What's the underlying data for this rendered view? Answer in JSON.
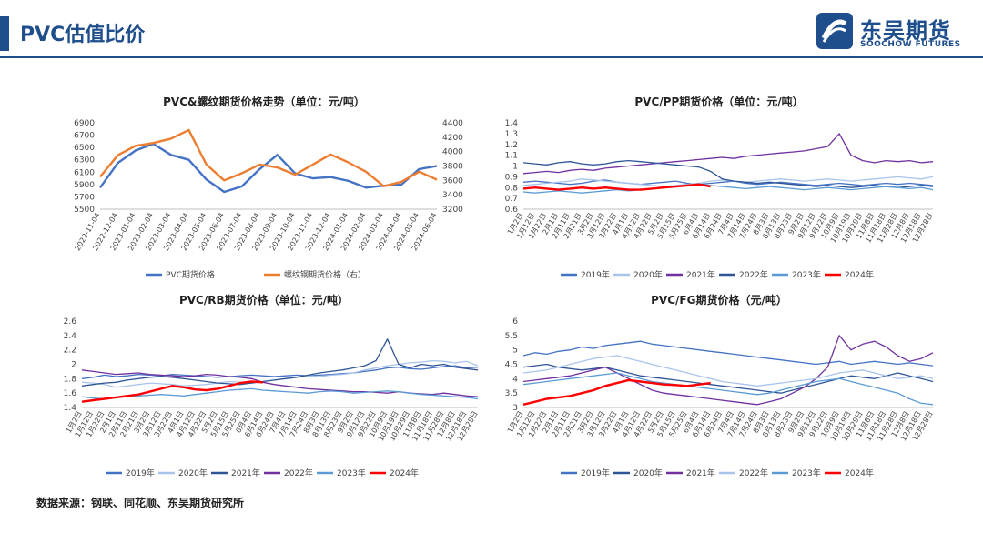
{
  "header": {
    "title": "PVC估值比价"
  },
  "logo": {
    "cn": "东吴期货",
    "en": "SOOCHOW FUTURES"
  },
  "footer": {
    "source": "数据来源：钢联、同花顺、东吴期货研究所"
  },
  "colors": {
    "brand": "#1f4e8c"
  },
  "chart_data": [
    {
      "id": "c1",
      "type": "line",
      "title": "PVC&螺纹期货价格走势（单位：元/吨）",
      "x": [
        "2022-11-04",
        "2022-12-04",
        "2023-01-04",
        "2023-02-04",
        "2023-03-04",
        "2023-04-04",
        "2023-05-04",
        "2023-06-04",
        "2023-07-04",
        "2023-08-04",
        "2023-09-04",
        "2023-10-04",
        "2023-11-04",
        "2023-12-04",
        "2024-01-04",
        "2024-02-04",
        "2024-03-04",
        "2024-04-04",
        "2024-05-04",
        "2024-06-04"
      ],
      "ylim": [
        5500,
        6900
      ],
      "yticks": [
        5500,
        5700,
        5900,
        6100,
        6300,
        6500,
        6700,
        6900
      ],
      "y2lim": [
        3200,
        4400
      ],
      "y2ticks": [
        3200,
        3400,
        3600,
        3800,
        4000,
        4200,
        4400
      ],
      "series": [
        {
          "name": "PVC期货价格",
          "axis": "left",
          "color": "#4472c4",
          "values": [
            5850,
            6250,
            6450,
            6560,
            6380,
            6300,
            5980,
            5780,
            5870,
            6150,
            6380,
            6080,
            6000,
            6020,
            5960,
            5850,
            5880,
            5900,
            6150,
            6200
          ]
        },
        {
          "name": "螺纹钢期货价格（右）",
          "axis": "right",
          "color": "#ed7d31",
          "values": [
            3650,
            3950,
            4080,
            4120,
            4180,
            4300,
            3820,
            3600,
            3700,
            3820,
            3780,
            3680,
            3820,
            3960,
            3850,
            3720,
            3520,
            3580,
            3720,
            3610
          ]
        }
      ]
    },
    {
      "id": "c2",
      "type": "line",
      "title": "PVC/PP期货价格（单位：元/吨）",
      "x": [
        "1月2日",
        "1月12日",
        "1月22日",
        "2月1日",
        "2月11日",
        "2月21日",
        "3月2日",
        "3月12日",
        "3月22日",
        "4月1日",
        "4月12日",
        "4月22日",
        "5月2日",
        "5月15日",
        "5月25日",
        "6月4日",
        "6月14日",
        "6月24日",
        "7月4日",
        "7月14日",
        "7月24日",
        "8月3日",
        "8月13日",
        "8月23日",
        "9月2日",
        "9月12日",
        "9月22日",
        "10月9日",
        "10月19日",
        "10月29日",
        "11月8日",
        "11月18日",
        "11月28日",
        "12月8日",
        "12月18日",
        "12月28日"
      ],
      "ylim": [
        0.6,
        1.4
      ],
      "yticks": [
        0.6,
        0.7,
        0.8,
        0.9,
        1,
        1.1,
        1.2,
        1.3,
        1.4
      ],
      "series": [
        {
          "name": "2019年",
          "color": "#4472c4",
          "values": [
            0.85,
            0.86,
            0.85,
            0.84,
            0.83,
            0.84,
            0.86,
            0.87,
            0.85,
            0.84,
            0.83,
            0.84,
            0.85,
            0.86,
            0.84,
            0.83,
            0.84,
            0.85,
            0.86,
            0.84,
            0.83,
            0.84,
            0.85,
            0.84,
            0.83,
            0.82,
            0.83,
            0.84,
            0.83,
            0.82,
            0.83,
            0.84,
            0.83,
            0.84,
            0.83,
            0.82
          ]
        },
        {
          "name": "2020年",
          "color": "#a9c4eb",
          "values": [
            0.82,
            0.83,
            0.84,
            0.85,
            0.86,
            0.88,
            0.87,
            0.86,
            0.85,
            0.84,
            0.83,
            0.82,
            0.81,
            0.82,
            0.83,
            0.84,
            0.86,
            0.87,
            0.86,
            0.85,
            0.86,
            0.87,
            0.88,
            0.87,
            0.86,
            0.87,
            0.88,
            0.87,
            0.86,
            0.87,
            0.88,
            0.89,
            0.9,
            0.89,
            0.88,
            0.9
          ]
        },
        {
          "name": "2021年",
          "color": "#7030a0",
          "values": [
            0.93,
            0.94,
            0.95,
            0.94,
            0.96,
            0.97,
            0.96,
            0.98,
            0.99,
            1.0,
            1.01,
            1.02,
            1.03,
            1.04,
            1.05,
            1.06,
            1.07,
            1.08,
            1.07,
            1.09,
            1.1,
            1.11,
            1.12,
            1.13,
            1.14,
            1.16,
            1.18,
            1.3,
            1.1,
            1.05,
            1.03,
            1.05,
            1.04,
            1.05,
            1.03,
            1.04
          ]
        },
        {
          "name": "2022年",
          "color": "#2f5597",
          "values": [
            1.03,
            1.02,
            1.01,
            1.03,
            1.04,
            1.02,
            1.01,
            1.02,
            1.04,
            1.05,
            1.04,
            1.03,
            1.02,
            1.01,
            1.0,
            0.99,
            0.95,
            0.88,
            0.86,
            0.85,
            0.84,
            0.85,
            0.84,
            0.83,
            0.82,
            0.81,
            0.82,
            0.81,
            0.8,
            0.81,
            0.82,
            0.81,
            0.8,
            0.81,
            0.82,
            0.81
          ]
        },
        {
          "name": "2023年",
          "color": "#5b9bd5",
          "values": [
            0.76,
            0.75,
            0.76,
            0.77,
            0.76,
            0.75,
            0.76,
            0.77,
            0.78,
            0.77,
            0.78,
            0.79,
            0.8,
            0.81,
            0.82,
            0.83,
            0.82,
            0.81,
            0.8,
            0.79,
            0.8,
            0.81,
            0.8,
            0.79,
            0.78,
            0.79,
            0.8,
            0.79,
            0.78,
            0.79,
            0.8,
            0.81,
            0.8,
            0.79,
            0.8,
            0.78
          ]
        },
        {
          "name": "2024年",
          "color": "#ff0000",
          "values": [
            0.79,
            0.8,
            0.79,
            0.78,
            0.79,
            0.8,
            0.79,
            0.8,
            0.79,
            0.78,
            0.78,
            0.79,
            0.8,
            0.81,
            0.82,
            0.83,
            0.81,
            null,
            null,
            null,
            null,
            null,
            null,
            null,
            null,
            null,
            null,
            null,
            null,
            null,
            null,
            null,
            null,
            null,
            null,
            null
          ]
        }
      ]
    },
    {
      "id": "c3",
      "type": "line",
      "title": "PVC/RB期货价格（单位：元/吨）",
      "x": [
        "1月2日",
        "1月12日",
        "1月22日",
        "2月1日",
        "2月11日",
        "2月21日",
        "3月2日",
        "3月12日",
        "3月22日",
        "4月1日",
        "4月12日",
        "4月22日",
        "5月2日",
        "5月15日",
        "5月25日",
        "6月4日",
        "6月14日",
        "6月24日",
        "7月4日",
        "7月14日",
        "7月24日",
        "8月3日",
        "8月13日",
        "8月23日",
        "9月2日",
        "9月12日",
        "9月22日",
        "10月9日",
        "10月19日",
        "10月29日",
        "11月8日",
        "11月18日",
        "11月28日",
        "12月8日",
        "12月18日",
        "12月28日"
      ],
      "ylim": [
        1.4,
        2.6
      ],
      "yticks": [
        1.4,
        1.6,
        1.8,
        2,
        2.2,
        2.4,
        2.6
      ],
      "series": [
        {
          "name": "2019年",
          "color": "#4472c4",
          "values": [
            1.8,
            1.82,
            1.85,
            1.83,
            1.84,
            1.86,
            1.85,
            1.84,
            1.86,
            1.85,
            1.84,
            1.83,
            1.82,
            1.83,
            1.84,
            1.85,
            1.84,
            1.83,
            1.84,
            1.85,
            1.84,
            1.85,
            1.86,
            1.87,
            1.88,
            1.9,
            1.92,
            1.95,
            1.96,
            1.94,
            1.93,
            1.95,
            1.97,
            1.98,
            1.95,
            1.96
          ]
        },
        {
          "name": "2020年",
          "color": "#a9c4eb",
          "values": [
            1.75,
            1.74,
            1.72,
            1.68,
            1.7,
            1.72,
            1.74,
            1.73,
            1.72,
            1.7,
            1.71,
            1.72,
            1.74,
            1.76,
            1.75,
            1.74,
            1.76,
            1.78,
            1.8,
            1.82,
            1.84,
            1.83,
            1.85,
            1.86,
            1.88,
            1.92,
            1.95,
            1.98,
            2.0,
            2.02,
            2.03,
            2.05,
            2.04,
            2.02,
            2.04,
            1.98
          ]
        },
        {
          "name": "2021年",
          "color": "#2f5597",
          "values": [
            1.7,
            1.72,
            1.74,
            1.75,
            1.78,
            1.8,
            1.82,
            1.83,
            1.82,
            1.8,
            1.78,
            1.76,
            1.74,
            1.73,
            1.72,
            1.74,
            1.76,
            1.78,
            1.8,
            1.82,
            1.85,
            1.88,
            1.9,
            1.92,
            1.95,
            1.98,
            2.05,
            2.35,
            2.0,
            1.95,
            2.0,
            1.98,
            2.0,
            1.96,
            1.94,
            1.92
          ]
        },
        {
          "name": "2022年",
          "color": "#7030a0",
          "values": [
            1.92,
            1.9,
            1.88,
            1.86,
            1.87,
            1.88,
            1.86,
            1.85,
            1.84,
            1.83,
            1.84,
            1.86,
            1.85,
            1.83,
            1.82,
            1.8,
            1.75,
            1.72,
            1.7,
            1.68,
            1.66,
            1.65,
            1.64,
            1.63,
            1.62,
            1.62,
            1.61,
            1.6,
            1.62,
            1.6,
            1.59,
            1.58,
            1.6,
            1.58,
            1.56,
            1.55
          ]
        },
        {
          "name": "2023年",
          "color": "#5b9bd5",
          "values": [
            1.55,
            1.53,
            1.52,
            1.54,
            1.55,
            1.56,
            1.57,
            1.58,
            1.57,
            1.56,
            1.58,
            1.6,
            1.62,
            1.64,
            1.65,
            1.66,
            1.64,
            1.63,
            1.62,
            1.61,
            1.6,
            1.62,
            1.63,
            1.62,
            1.6,
            1.61,
            1.62,
            1.63,
            1.62,
            1.6,
            1.58,
            1.57,
            1.56,
            1.55,
            1.54,
            1.52
          ]
        },
        {
          "name": "2024年",
          "color": "#ff0000",
          "values": [
            1.48,
            1.5,
            1.52,
            1.54,
            1.56,
            1.58,
            1.62,
            1.66,
            1.7,
            1.68,
            1.65,
            1.64,
            1.66,
            1.7,
            1.74,
            1.76,
            1.75,
            null,
            null,
            null,
            null,
            null,
            null,
            null,
            null,
            null,
            null,
            null,
            null,
            null,
            null,
            null,
            null,
            null,
            null,
            null
          ]
        }
      ]
    },
    {
      "id": "c4",
      "type": "line",
      "title": "PVC/FG期货价格（元/吨）",
      "x": [
        "1月2日",
        "1月12日",
        "1月22日",
        "2月1日",
        "2月11日",
        "2月21日",
        "3月2日",
        "3月12日",
        "3月22日",
        "4月1日",
        "4月12日",
        "4月22日",
        "5月2日",
        "5月15日",
        "5月25日",
        "6月4日",
        "6月14日",
        "6月24日",
        "7月4日",
        "7月14日",
        "7月24日",
        "8月3日",
        "8月13日",
        "8月23日",
        "9月2日",
        "9月12日",
        "9月22日",
        "10月9日",
        "10月19日",
        "10月29日",
        "11月8日",
        "11月18日",
        "11月28日",
        "12月8日",
        "12月18日",
        "12月28日"
      ],
      "ylim": [
        3,
        6
      ],
      "yticks": [
        3,
        3.5,
        4,
        4.5,
        5,
        5.5,
        6
      ],
      "series": [
        {
          "name": "2019年",
          "color": "#4472c4",
          "values": [
            4.8,
            4.9,
            4.85,
            4.95,
            5.0,
            5.1,
            5.05,
            5.15,
            5.2,
            5.25,
            5.3,
            5.2,
            5.15,
            5.1,
            5.05,
            5.0,
            4.95,
            4.9,
            4.85,
            4.8,
            4.75,
            4.7,
            4.65,
            4.6,
            4.55,
            4.5,
            4.55,
            4.6,
            4.5,
            4.55,
            4.6,
            4.55,
            4.5,
            4.55,
            4.5,
            4.45
          ]
        },
        {
          "name": "2020年",
          "color": "#2f5597",
          "values": [
            4.4,
            4.45,
            4.5,
            4.4,
            4.35,
            4.3,
            4.35,
            4.4,
            4.3,
            4.2,
            4.1,
            4.05,
            4.0,
            3.95,
            3.9,
            3.85,
            3.8,
            3.75,
            3.7,
            3.65,
            3.6,
            3.55,
            3.5,
            3.6,
            3.7,
            3.8,
            3.9,
            4.0,
            4.1,
            4.05,
            4.0,
            4.1,
            4.2,
            4.1,
            4.0,
            3.9
          ]
        },
        {
          "name": "2021年",
          "color": "#7030a0",
          "values": [
            3.9,
            3.95,
            4.0,
            4.05,
            4.1,
            4.2,
            4.3,
            4.4,
            4.2,
            4.0,
            3.8,
            3.6,
            3.5,
            3.45,
            3.4,
            3.35,
            3.3,
            3.25,
            3.2,
            3.15,
            3.1,
            3.2,
            3.3,
            3.5,
            3.7,
            4.0,
            4.4,
            5.5,
            5.0,
            5.2,
            5.3,
            5.1,
            4.8,
            4.6,
            4.7,
            4.9
          ]
        },
        {
          "name": "2022年",
          "color": "#a9c4eb",
          "values": [
            4.2,
            4.25,
            4.3,
            4.4,
            4.5,
            4.6,
            4.7,
            4.75,
            4.8,
            4.7,
            4.6,
            4.5,
            4.4,
            4.3,
            4.2,
            4.1,
            4.0,
            3.9,
            3.85,
            3.8,
            3.75,
            3.8,
            3.85,
            3.9,
            3.95,
            4.0,
            4.1,
            4.2,
            4.25,
            4.3,
            4.2,
            4.1,
            4.0,
            4.05,
            4.1,
            4.0
          ]
        },
        {
          "name": "2023年",
          "color": "#5b9bd5",
          "values": [
            3.8,
            3.85,
            3.9,
            3.95,
            4.0,
            4.05,
            4.1,
            4.15,
            4.2,
            4.1,
            4.0,
            3.9,
            3.85,
            3.8,
            3.75,
            3.7,
            3.65,
            3.6,
            3.55,
            3.5,
            3.45,
            3.5,
            3.6,
            3.7,
            3.8,
            3.9,
            3.95,
            4.0,
            3.9,
            3.8,
            3.7,
            3.6,
            3.5,
            3.3,
            3.15,
            3.1
          ]
        },
        {
          "name": "2024年",
          "color": "#ff0000",
          "values": [
            3.1,
            3.2,
            3.3,
            3.35,
            3.4,
            3.5,
            3.6,
            3.75,
            3.85,
            3.95,
            3.9,
            3.85,
            3.8,
            3.78,
            3.75,
            3.8,
            3.85,
            null,
            null,
            null,
            null,
            null,
            null,
            null,
            null,
            null,
            null,
            null,
            null,
            null,
            null,
            null,
            null,
            null,
            null,
            null
          ]
        }
      ]
    }
  ]
}
